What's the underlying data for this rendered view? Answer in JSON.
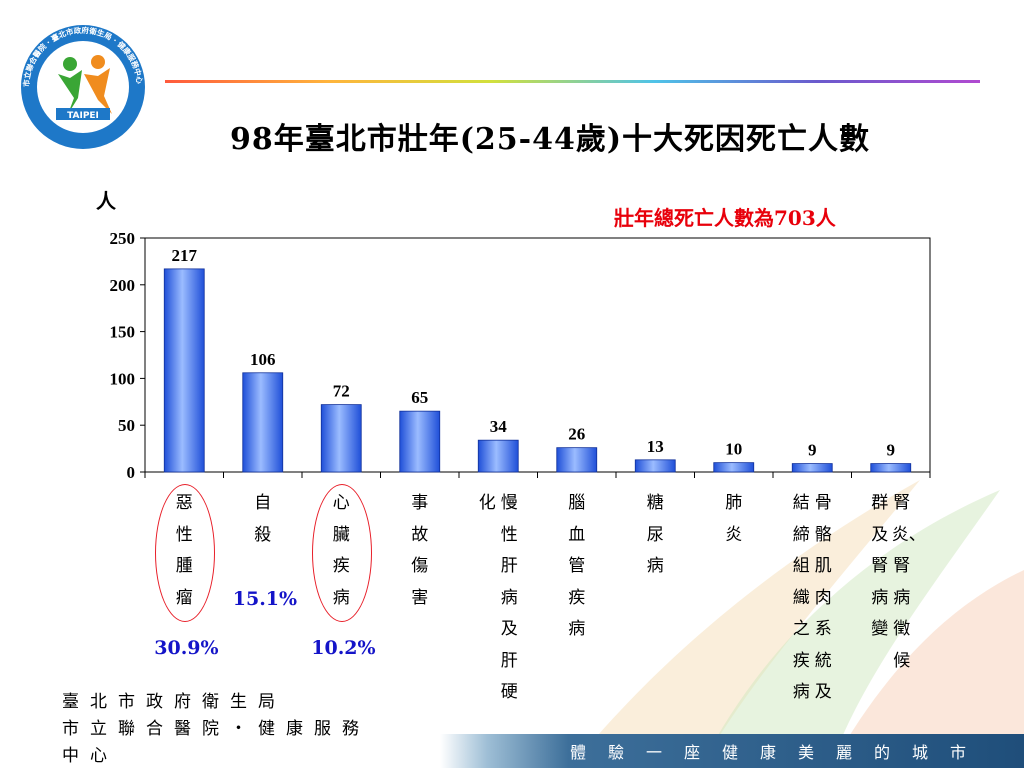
{
  "header": {
    "title": "98年臺北市壯年(25-44歲)十大死因死亡人數"
  },
  "logo": {
    "ring_text": "市立聯合醫院 · 臺北市政府衛生局 · 健康服務中心",
    "inner_text": "TAIPEI",
    "colors": {
      "ring": "#1e78c8",
      "figure_green": "#3aa635",
      "figure_orange": "#f08c1e"
    }
  },
  "chart_data": {
    "type": "bar",
    "ylabel": "人",
    "ylim": [
      0,
      250
    ],
    "yticks": [
      "0",
      "50",
      "100",
      "150",
      "200",
      "250"
    ],
    "annotation": "壯年總死亡人數為703人",
    "categories": [
      "惡性腫瘤",
      "自殺",
      "心臟疾病",
      "事故傷害",
      "慢性肝病及肝硬化",
      "腦血管疾病",
      "糖尿病",
      "肺炎",
      "骨骼肌肉系統及結締組織之疾病",
      "腎炎、腎病徵候群及腎病變"
    ],
    "category_columns": [
      [
        "惡性腫瘤"
      ],
      [
        "自殺"
      ],
      [
        "心臟疾病"
      ],
      [
        "事故傷害"
      ],
      [
        "慢性肝病及肝硬",
        "化"
      ],
      [
        "腦血管疾病"
      ],
      [
        "糖尿病"
      ],
      [
        "肺炎"
      ],
      [
        "骨骼肌肉系統及",
        "結締組織之疾病"
      ],
      [
        "腎炎、腎病徵候",
        "群及腎病變"
      ]
    ],
    "values": [
      217,
      106,
      72,
      65,
      34,
      26,
      13,
      10,
      9,
      9
    ],
    "value_labels": [
      "217",
      "106",
      "72",
      "65",
      "34",
      "26",
      "13",
      "10",
      "9",
      "9"
    ],
    "percent_labels": [
      {
        "index": 0,
        "text": "30.9%"
      },
      {
        "index": 1,
        "text": "15.1%"
      },
      {
        "index": 2,
        "text": "10.2%"
      }
    ],
    "highlighted": [
      0,
      2
    ],
    "colors": {
      "bar": "#2a5ee8",
      "bar_light": "#8fb0ff",
      "annotation": "#e8000b",
      "percent": "#1414c8",
      "circle": "#e8202a"
    }
  },
  "footer": {
    "org_lines": [
      "臺北市政府衛生局",
      "市立聯合醫院・健康服務中心"
    ],
    "slogan": "體驗一座健康美麗的城市"
  }
}
